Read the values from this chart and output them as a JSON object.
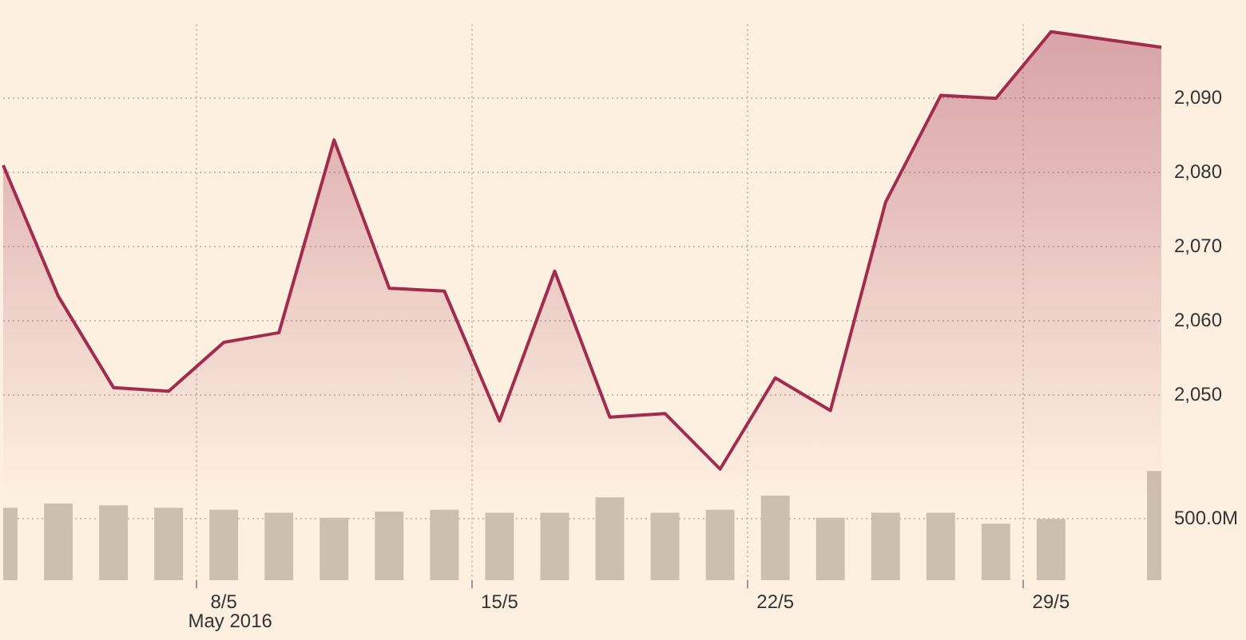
{
  "chart_data": {
    "type": "area",
    "categories": [
      null,
      null,
      null,
      null,
      "8/5",
      null,
      null,
      null,
      null,
      "15/5",
      null,
      null,
      null,
      null,
      "22/5",
      null,
      null,
      null,
      null,
      "29/5",
      null,
      null
    ],
    "series": [
      {
        "color": "#a12c4e",
        "values": [
          2081.0,
          2063.3,
          2051.0,
          2050.5,
          2057.1,
          2058.4,
          2084.4,
          2064.4,
          2064.0,
          2046.5,
          2066.7,
          2047.0,
          2047.5,
          2040.0,
          2052.3,
          2047.9,
          2076.0,
          2090.4,
          2090.0,
          2099.0,
          null,
          2096.9
        ]
      },
      {
        "type": "bar",
        "axis": "y2",
        "color": "#cdbfae",
        "values": [
          590,
          625,
          610,
          590,
          575,
          550,
          510,
          560,
          575,
          550,
          550,
          675,
          550,
          575,
          690,
          510,
          550,
          550,
          460,
          500,
          null,
          890
        ]
      }
    ],
    "ylim": [
      2025,
      2100
    ],
    "yticks": [
      {
        "value": 2050,
        "label": "2,050"
      },
      {
        "value": 2060,
        "label": "2,060"
      },
      {
        "value": 2070,
        "label": "2,070"
      },
      {
        "value": 2080,
        "label": "2,080"
      },
      {
        "value": 2090,
        "label": "2,090"
      }
    ],
    "y2lim": [
      0,
      4525
    ],
    "y2ticks": [
      {
        "value": 500,
        "label": "500.0M"
      }
    ],
    "grid": true,
    "legend": false,
    "annotations": [
      "May 2016"
    ]
  }
}
